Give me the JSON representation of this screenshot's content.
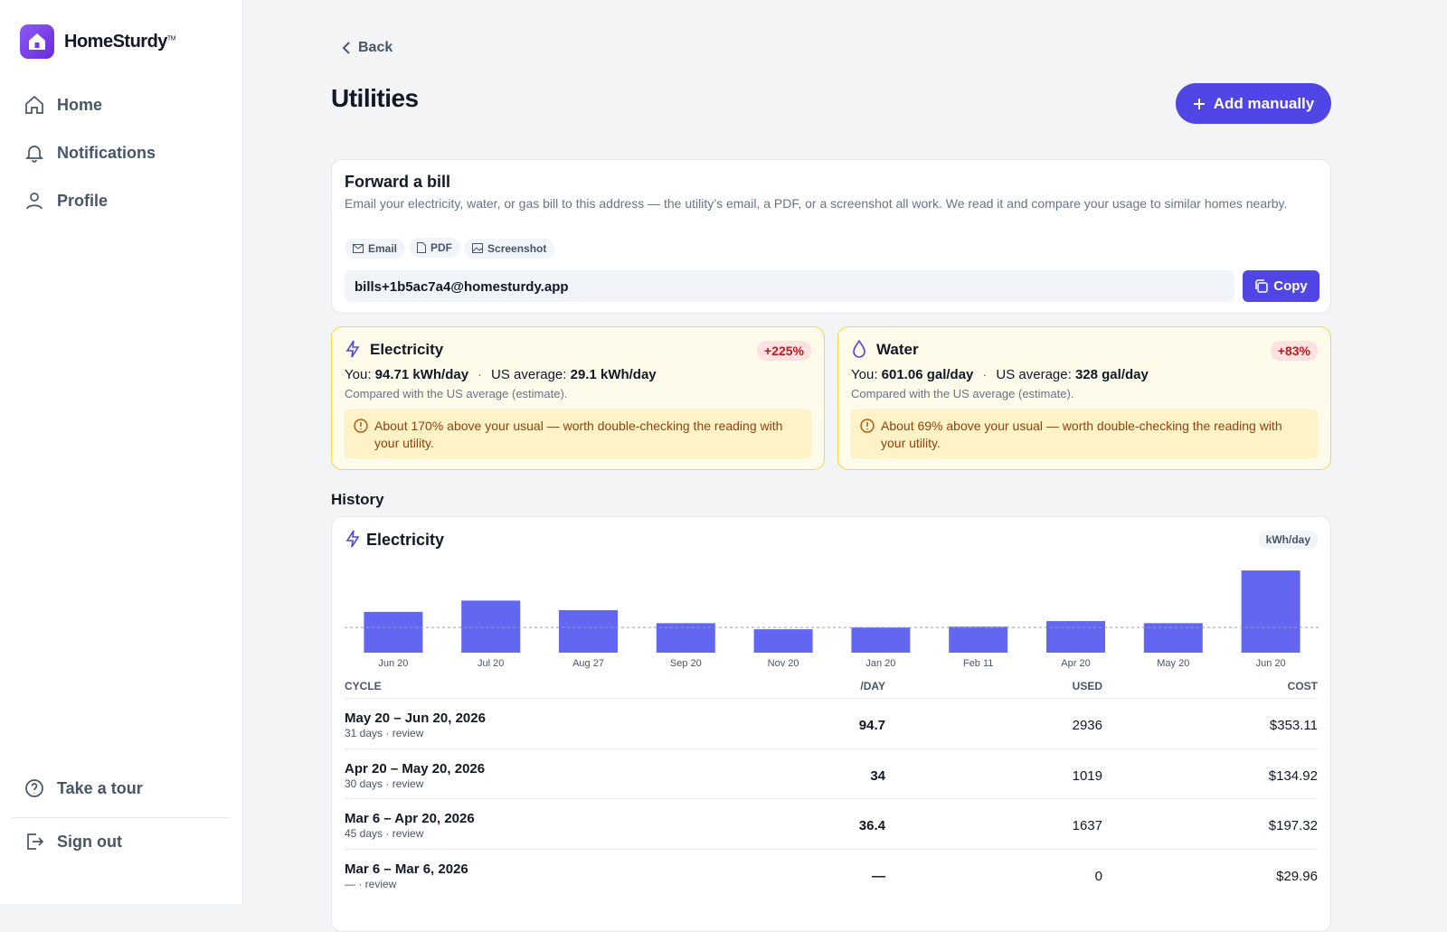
{
  "brand": {
    "name": "HomeSturdy",
    "tm": "TM"
  },
  "nav": [
    "Home",
    "Notifications",
    "Profile"
  ],
  "footer_nav": [
    "Take a tour",
    "Sign out"
  ],
  "back": "Back",
  "title": "Utilities",
  "add_button": "Add manually",
  "forward": {
    "title": "Forward a bill",
    "description": "Email your electricity, water, or gas bill to this address — the utility’s email, a PDF, or a screenshot all work. We read it and compare your usage to similar homes nearby.",
    "chips": [
      "Email",
      "PDF",
      "Screenshot"
    ],
    "address": "bills+1b5ac7a4@homesturdy.app",
    "copy": "Copy"
  },
  "cards": [
    {
      "name": "Electricity",
      "badge": "+225%",
      "you_label": "You:",
      "you": "94.71 kWh/day",
      "sep": "·",
      "avg_label": "US average:",
      "avg": "29.1 kWh/day",
      "note": "Compared with the US average (estimate).",
      "alert": "About 170% above your usual — worth double-checking the reading with your utility."
    },
    {
      "name": "Water",
      "badge": "+83%",
      "you_label": "You:",
      "you": "601.06 gal/day",
      "sep": "·",
      "avg_label": "US average:",
      "avg": "328 gal/day",
      "note": "Compared with the US average (estimate).",
      "alert": "About 69% above your usual — worth double-checking the reading with your utility."
    }
  ],
  "history": {
    "title": "History",
    "panel": "Electricity",
    "unit": "kWh/day",
    "chart": {
      "type": "bar",
      "categories": [
        "Jun 20",
        "Jul 20",
        "Aug 27",
        "Sep 20",
        "Nov 20",
        "Jan 20",
        "Feb 11",
        "Apr 20",
        "May 20",
        "Jun 20"
      ],
      "values": [
        47,
        60,
        49,
        34,
        27,
        29,
        30,
        36.4,
        34,
        94.7
      ],
      "reference": 29.1,
      "ylim": [
        0,
        100
      ],
      "color": "#6366f1"
    },
    "table": {
      "columns": [
        "CYCLE",
        "/DAY",
        "USED",
        "COST"
      ],
      "rows": [
        {
          "cycle": "May 20 – Jun 20, 2026",
          "sub": "31 days · review",
          "per_day": 94.7,
          "used": 2936,
          "cost": "$353.11"
        },
        {
          "cycle": "Apr 20 – May 20, 2026",
          "sub": "30 days · review",
          "per_day": 34,
          "used": 1019,
          "cost": "$134.92"
        },
        {
          "cycle": "Mar 6 – Apr 20, 2026",
          "sub": "45 days · review",
          "per_day": 36.4,
          "used": 1637,
          "cost": "$197.32"
        },
        {
          "cycle": "Mar 6 – Mar 6, 2026",
          "sub": "— · review",
          "per_day": "—",
          "used": 0,
          "cost": "$29.96"
        }
      ]
    }
  }
}
